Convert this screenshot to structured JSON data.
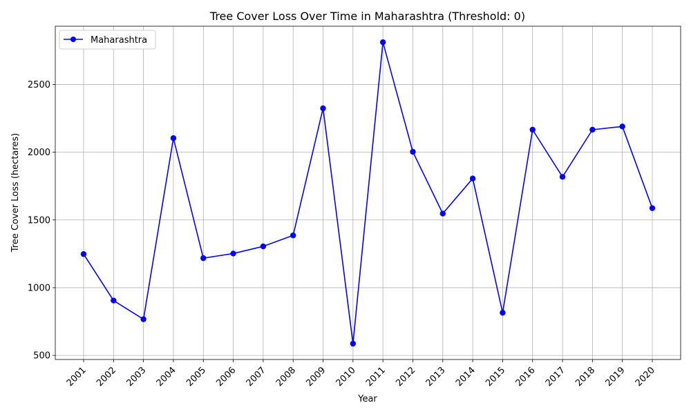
{
  "chart_data": {
    "type": "line",
    "title": "Tree Cover Loss Over Time in Maharashtra (Threshold: 0)",
    "xlabel": "Year",
    "ylabel": "Tree Cover Loss (hectares)",
    "categories": [
      "2001",
      "2002",
      "2003",
      "2004",
      "2005",
      "2006",
      "2007",
      "2008",
      "2009",
      "2010",
      "2011",
      "2012",
      "2013",
      "2014",
      "2015",
      "2016",
      "2017",
      "2018",
      "2019",
      "2020"
    ],
    "series": [
      {
        "name": "Maharashtra",
        "color": "#0000ff",
        "values": [
          1248,
          905,
          767,
          2104,
          1218,
          1252,
          1305,
          1386,
          2324,
          587,
          2812,
          2003,
          1547,
          1806,
          815,
          2166,
          1818,
          2166,
          2190,
          1587
        ]
      }
    ],
    "ylim": [
      470,
      2930
    ],
    "yticks": [
      500,
      1000,
      1500,
      2000,
      2500
    ],
    "grid": true,
    "legend": "top-left",
    "x_tick_rotation": 45
  }
}
